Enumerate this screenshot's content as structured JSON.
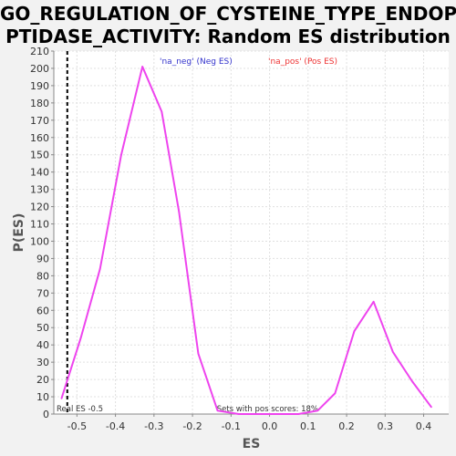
{
  "title_lines": [
    "GO_REGULATION_OF_CYSTEINE_TYPE_ENDOPE",
    "PTIDASE_ACTIVITY: Random ES distribution"
  ],
  "colors": {
    "background": "#f2f2f2",
    "plot_bg": "#ffffff",
    "line": "#ee44ee",
    "neg_legend": "#3333cc",
    "pos_legend": "#ee3333",
    "grid": "#e0e0e0",
    "real_es_line": "#000000"
  },
  "chart_data": {
    "type": "line",
    "title": "GO_REGULATION_OF_CYSTEINE_TYPE_ENDOPEPTIDASE_ACTIVITY: Random ES distribution",
    "xlabel": "ES",
    "ylabel": "P(ES)",
    "xlim": [
      -0.56,
      0.465
    ],
    "ylim": [
      0,
      210
    ],
    "x_ticks": [
      -0.5,
      -0.4,
      -0.3,
      -0.2,
      -0.1,
      0.0,
      0.1,
      0.2,
      0.3,
      0.4
    ],
    "x_tick_labels": [
      "-0.5",
      "-0.4",
      "-0.3",
      "-0.2",
      "-0.1",
      "0.0",
      "0.1",
      "0.2",
      "0.3",
      "0.4"
    ],
    "y_ticks": [
      0,
      10,
      20,
      30,
      40,
      50,
      60,
      70,
      80,
      90,
      100,
      110,
      120,
      130,
      140,
      150,
      160,
      170,
      180,
      190,
      200,
      210
    ],
    "grid": true,
    "legend_position": "top",
    "legend": [
      {
        "label": "'na_neg' (Neg ES)",
        "color": "#3333cc"
      },
      {
        "label": "'na_pos' (Pos ES)",
        "color": "#ee3333"
      }
    ],
    "series": [
      {
        "color": "#ee44ee",
        "x": [
          -0.54,
          -0.49,
          -0.44,
          -0.385,
          -0.33,
          -0.28,
          -0.235,
          -0.185,
          -0.135,
          -0.08,
          -0.03,
          0.02,
          0.075,
          0.125,
          0.17,
          0.22,
          0.27,
          0.32,
          0.37,
          0.42
        ],
        "y": [
          9,
          44,
          84,
          150,
          201,
          175,
          117,
          35,
          2,
          0,
          0,
          0,
          0,
          2,
          12,
          48,
          65,
          36,
          19,
          4
        ]
      }
    ],
    "real_es": {
      "value": -0.525,
      "label": "Real ES -0.5"
    },
    "annotation": "Sets with pos scores: 18%"
  }
}
